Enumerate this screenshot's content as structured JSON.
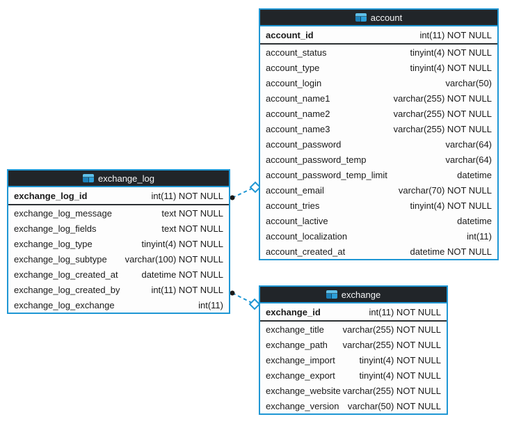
{
  "diagram": {
    "colors": {
      "accent_blue": "#1f97d4",
      "header_bg": "#212529",
      "text": "#1a1a1a",
      "pk_divider": "#2c3033",
      "background": "#ffffff",
      "connector_dot": "#1a1a1a",
      "connector_diamond_fill": "#ffffff"
    },
    "tables": [
      {
        "title": "exchange_log",
        "primary_key": {
          "name": "exchange_log_id",
          "type": "int(11) NOT NULL"
        },
        "rows": [
          {
            "name": "exchange_log_message",
            "type": "text NOT NULL"
          },
          {
            "name": "exchange_log_fields",
            "type": "text NOT NULL"
          },
          {
            "name": "exchange_log_type",
            "type": "tinyint(4) NOT NULL"
          },
          {
            "name": "exchange_log_subtype",
            "type": "varchar(100) NOT NULL"
          },
          {
            "name": "exchange_log_created_at",
            "type": "datetime NOT NULL"
          },
          {
            "name": "exchange_log_created_by",
            "type": "int(11) NOT NULL"
          },
          {
            "name": "exchange_log_exchange",
            "type": "int(11)"
          }
        ]
      },
      {
        "title": "account",
        "primary_key": {
          "name": "account_id",
          "type": "int(11) NOT NULL"
        },
        "rows": [
          {
            "name": "account_status",
            "type": "tinyint(4) NOT NULL"
          },
          {
            "name": "account_type",
            "type": "tinyint(4) NOT NULL"
          },
          {
            "name": "account_login",
            "type": "varchar(50)"
          },
          {
            "name": "account_name1",
            "type": "varchar(255) NOT NULL"
          },
          {
            "name": "account_name2",
            "type": "varchar(255) NOT NULL"
          },
          {
            "name": "account_name3",
            "type": "varchar(255) NOT NULL"
          },
          {
            "name": "account_password",
            "type": "varchar(64)"
          },
          {
            "name": "account_password_temp",
            "type": "varchar(64)"
          },
          {
            "name": "account_password_temp_limit",
            "type": "datetime"
          },
          {
            "name": "account_email",
            "type": "varchar(70) NOT NULL"
          },
          {
            "name": "account_tries",
            "type": "tinyint(4) NOT NULL"
          },
          {
            "name": "account_lactive",
            "type": "datetime"
          },
          {
            "name": "account_localization",
            "type": "int(11)"
          },
          {
            "name": "account_created_at",
            "type": "datetime NOT NULL"
          }
        ]
      },
      {
        "title": "exchange",
        "primary_key": {
          "name": "exchange_id",
          "type": "int(11) NOT NULL"
        },
        "rows": [
          {
            "name": "exchange_title",
            "type": "varchar(255) NOT NULL"
          },
          {
            "name": "exchange_path",
            "type": "varchar(255) NOT NULL"
          },
          {
            "name": "exchange_import",
            "type": "tinyint(4) NOT NULL"
          },
          {
            "name": "exchange_export",
            "type": "tinyint(4) NOT NULL"
          },
          {
            "name": "exchange_website",
            "type": "varchar(255) NOT NULL"
          },
          {
            "name": "exchange_version",
            "type": "varchar(50) NOT NULL"
          }
        ]
      }
    ],
    "connectors": [
      {
        "from_table": "exchange_log",
        "to_table": "account",
        "line_style": "dashed",
        "start_marker": "dot",
        "end_marker": "diamond"
      },
      {
        "from_table": "exchange_log",
        "to_table": "exchange",
        "line_style": "dashed",
        "start_marker": "dot",
        "end_marker": "diamond"
      }
    ]
  }
}
